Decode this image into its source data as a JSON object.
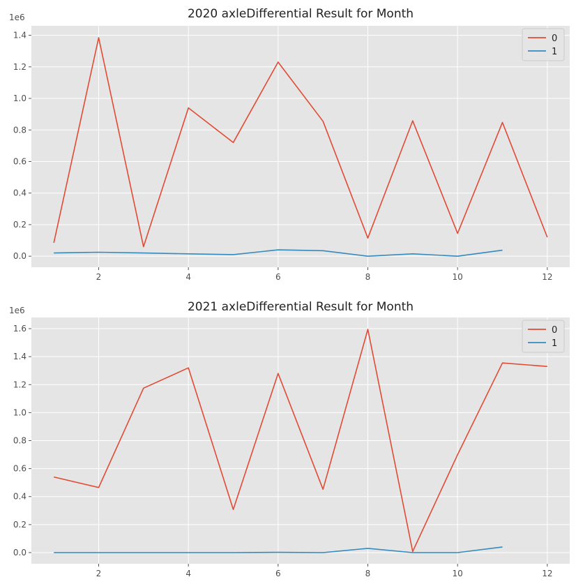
{
  "chart_data": [
    {
      "type": "line",
      "title": "2020 axleDifferential Result for Month",
      "xlabel": "",
      "ylabel": "",
      "offset_label": "1e6",
      "xlim": [
        0.5,
        12.5
      ],
      "ylim": [
        -70000,
        1460000
      ],
      "xticks": [
        2,
        4,
        6,
        8,
        10,
        12
      ],
      "yticks": [
        0,
        200000,
        400000,
        600000,
        800000,
        1000000,
        1200000,
        1400000
      ],
      "ytick_labels": [
        "0.0",
        "0.2",
        "0.4",
        "0.6",
        "0.8",
        "1.0",
        "1.2",
        "1.4"
      ],
      "grid": true,
      "legend_position": "top-right",
      "series": [
        {
          "name": "0",
          "color": "#e24a33",
          "x": [
            1,
            2,
            3,
            4,
            5,
            6,
            7,
            8,
            9,
            10,
            11,
            12
          ],
          "y": [
            85000,
            1385000,
            60000,
            940000,
            720000,
            1230000,
            855000,
            115000,
            858000,
            145000,
            848000,
            120000
          ]
        },
        {
          "name": "1",
          "color": "#348abd",
          "x": [
            1,
            2,
            3,
            4,
            5,
            6,
            7,
            8,
            9,
            10,
            11
          ],
          "y": [
            20000,
            25000,
            20000,
            15000,
            10000,
            40000,
            35000,
            0,
            15000,
            0,
            38000
          ]
        }
      ]
    },
    {
      "type": "line",
      "title": "2021 axleDifferential Result for Month",
      "xlabel": "",
      "ylabel": "",
      "offset_label": "1e6",
      "xlim": [
        0.5,
        12.5
      ],
      "ylim": [
        -80000,
        1680000
      ],
      "xticks": [
        2,
        4,
        6,
        8,
        10,
        12
      ],
      "yticks": [
        0,
        200000,
        400000,
        600000,
        800000,
        1000000,
        1200000,
        1400000,
        1600000
      ],
      "ytick_labels": [
        "0.0",
        "0.2",
        "0.4",
        "0.6",
        "0.8",
        "1.0",
        "1.2",
        "1.4",
        "1.6"
      ],
      "grid": true,
      "legend_position": "top-right",
      "series": [
        {
          "name": "0",
          "color": "#e24a33",
          "x": [
            1,
            2,
            3,
            4,
            5,
            6,
            7,
            8,
            9,
            10,
            11,
            12
          ],
          "y": [
            540000,
            465000,
            1175000,
            1320000,
            308000,
            1280000,
            452000,
            1595000,
            8000,
            700000,
            1355000,
            1330000
          ]
        },
        {
          "name": "1",
          "color": "#348abd",
          "x": [
            1,
            2,
            3,
            4,
            5,
            6,
            7,
            8,
            9,
            10,
            11
          ],
          "y": [
            0,
            0,
            0,
            0,
            0,
            2000,
            0,
            30000,
            0,
            0,
            40000
          ]
        }
      ]
    }
  ]
}
